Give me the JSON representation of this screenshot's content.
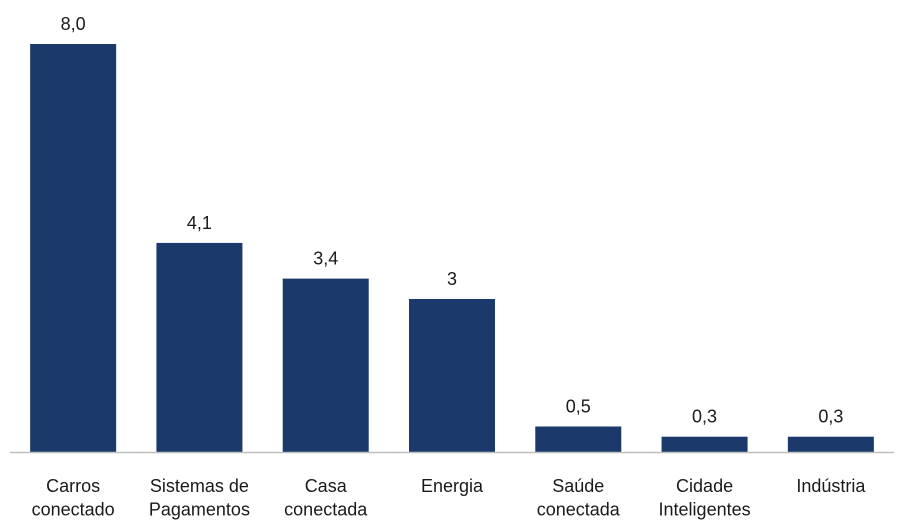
{
  "chart_data": {
    "type": "bar",
    "categories": [
      [
        "Carros",
        "conectado"
      ],
      [
        "Sistemas de",
        "Pagamentos"
      ],
      [
        "Casa",
        "conectada"
      ],
      [
        "Energia"
      ],
      [
        "Saúde",
        "conectada"
      ],
      [
        "Cidade",
        "Inteligentes"
      ],
      [
        "Indústria"
      ]
    ],
    "values": [
      8.0,
      4.1,
      3.4,
      3.0,
      0.5,
      0.3,
      0.3
    ],
    "data_labels": [
      "8,0",
      "4,1",
      "3,4",
      "3",
      "0,5",
      "0,3",
      "0,3"
    ],
    "title": "",
    "xlabel": "",
    "ylabel": "",
    "ylim": [
      0,
      8.0
    ],
    "grid": false,
    "legend": "none",
    "bar_color": "#1b3a6b",
    "axis_color": "#bfbfbf"
  }
}
